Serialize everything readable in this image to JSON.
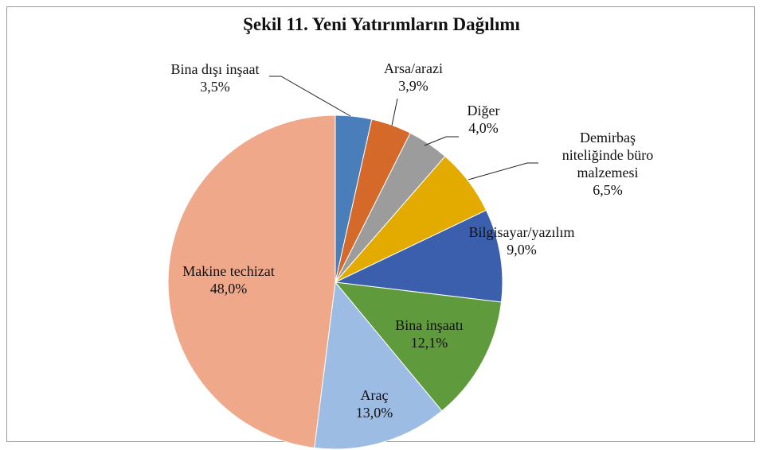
{
  "chart_data": {
    "type": "pie",
    "title": "Şekil 11. Yeni Yatırımların Dağılımı",
    "categories": [
      "Bina dışı inşaat",
      "Arsa/arazi",
      "Diğer",
      "Demirbaş niteliğinde büro malzemesi",
      "Bilgisayar/yazılım",
      "Bina inşaatı",
      "Araç",
      "Makine techizat"
    ],
    "values": [
      3.5,
      3.9,
      4.0,
      6.5,
      9.0,
      12.1,
      13.0,
      48.0
    ],
    "value_labels": [
      "3,5%",
      "3,9%",
      "4,0%",
      "6,5%",
      "9,0%",
      "12,1%",
      "13,0%",
      "48,0%"
    ],
    "colors": [
      "#4a7ebb",
      "#d4692a",
      "#9c9c9c",
      "#e3aa00",
      "#3b5fad",
      "#5f9a3c",
      "#9dbce4",
      "#f0a88a"
    ]
  }
}
